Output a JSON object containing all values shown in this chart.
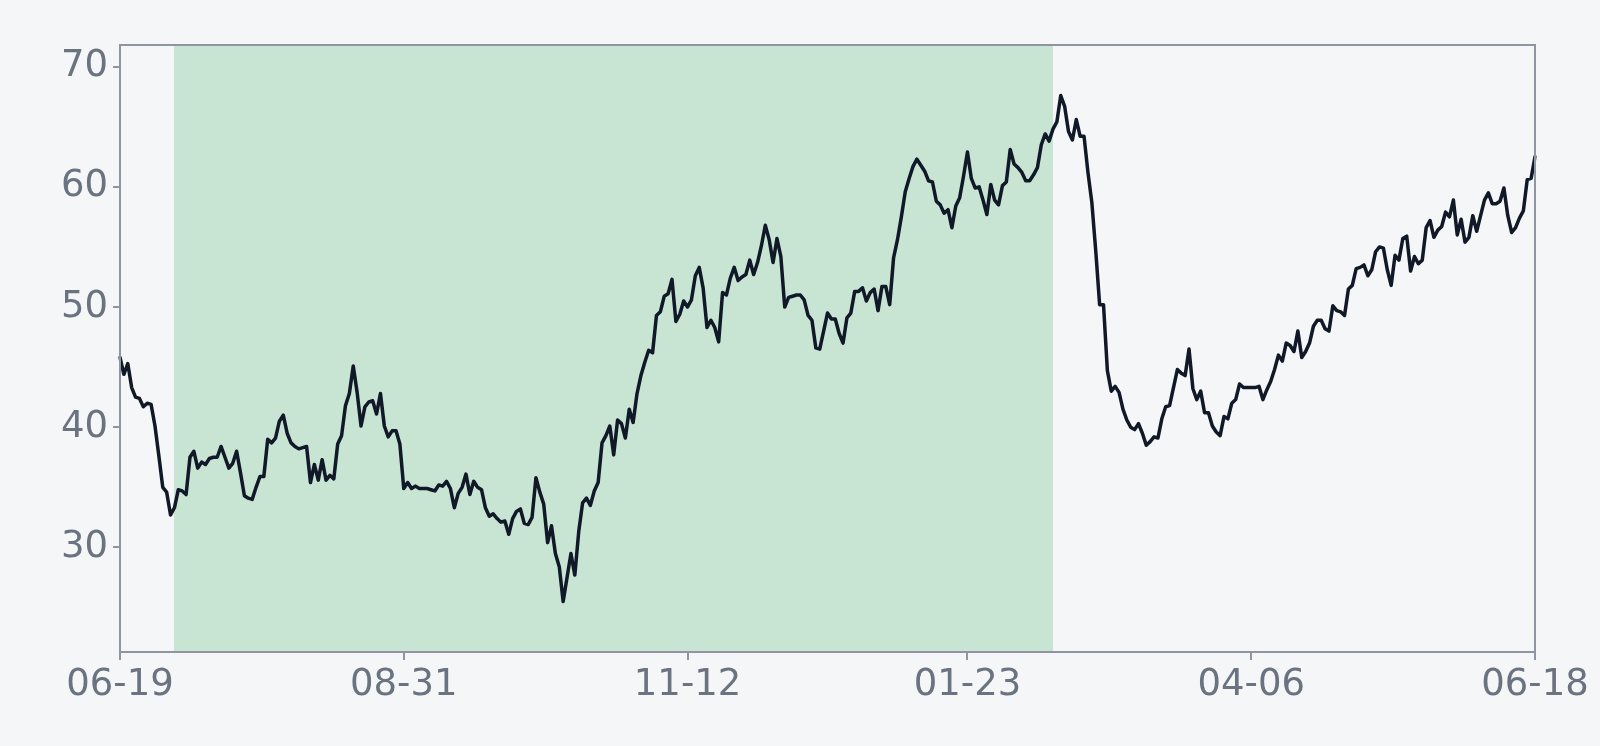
{
  "chart_data": {
    "type": "line",
    "categories": [
      "06-19",
      null,
      null,
      null,
      null,
      null,
      null,
      null,
      null,
      null,
      null,
      null,
      null,
      null,
      null,
      null,
      null,
      null,
      null,
      null,
      null,
      null,
      null,
      null,
      null,
      null,
      null,
      null,
      null,
      null,
      null,
      null,
      null,
      null,
      null,
      null,
      null,
      null,
      null,
      null,
      null,
      null,
      null,
      null,
      null,
      null,
      null,
      null,
      null,
      null,
      null,
      null,
      null,
      null,
      null,
      null,
      null,
      null,
      null,
      null,
      null,
      null,
      null,
      null,
      null,
      null,
      null,
      null,
      null,
      null,
      null,
      null,
      null,
      "08-31",
      null,
      null,
      null,
      null,
      null,
      null,
      null,
      null,
      null,
      null,
      null,
      null,
      null,
      null,
      null,
      null,
      null,
      null,
      null,
      null,
      null,
      null,
      null,
      null,
      null,
      null,
      null,
      null,
      null,
      null,
      null,
      null,
      null,
      null,
      null,
      null,
      null,
      null,
      null,
      null,
      null,
      null,
      null,
      null,
      null,
      null,
      null,
      null,
      null,
      null,
      null,
      null,
      null,
      null,
      null,
      null,
      null,
      null,
      null,
      null,
      null,
      null,
      null,
      null,
      null,
      null,
      null,
      null,
      null,
      null,
      null,
      null,
      "11-12",
      null,
      null,
      null,
      null,
      null,
      null,
      null,
      null,
      null,
      null,
      null,
      null,
      null,
      null,
      null,
      null,
      null,
      null,
      null,
      null,
      null,
      null,
      null,
      null,
      null,
      null,
      null,
      null,
      null,
      null,
      null,
      null,
      null,
      null,
      null,
      null,
      null,
      null,
      null,
      null,
      null,
      null,
      null,
      null,
      null,
      null,
      null,
      null,
      null,
      null,
      null,
      null,
      null,
      null,
      null,
      null,
      null,
      null,
      null,
      null,
      null,
      null,
      null,
      null,
      null,
      null,
      null,
      null,
      null,
      null,
      null,
      "01-23",
      null,
      null,
      null,
      null,
      null,
      null,
      null,
      null,
      null,
      null,
      null,
      null,
      null,
      null,
      null,
      null,
      null,
      null,
      null,
      null,
      null,
      null,
      null,
      null,
      null,
      null,
      null,
      null,
      null,
      null,
      null,
      null,
      null,
      null,
      null,
      null,
      null,
      null,
      null,
      null,
      null,
      null,
      null,
      null,
      null,
      null,
      null,
      null,
      null,
      null,
      null,
      null,
      null,
      null,
      null,
      null,
      null,
      null,
      null,
      null,
      null,
      null,
      null,
      null,
      null,
      null,
      null,
      null,
      null,
      null,
      null,
      null,
      "04-06",
      null,
      null,
      null,
      null,
      null,
      null,
      null,
      null,
      null,
      null,
      null,
      null,
      null,
      null,
      null,
      null,
      null,
      null,
      null,
      null,
      null,
      null,
      null,
      null,
      null,
      null,
      null,
      null,
      null,
      null,
      null,
      null,
      null,
      null,
      null,
      null,
      null,
      null,
      null,
      null,
      null,
      null,
      null,
      null,
      null,
      null,
      null,
      null,
      null,
      null,
      null,
      null,
      null,
      null,
      null,
      null,
      null,
      null,
      null,
      null,
      null,
      null,
      null,
      null,
      null,
      null,
      null,
      null,
      null,
      null,
      null,
      null,
      "06-18"
    ],
    "series": [
      {
        "color": "#111827",
        "values": [
          45.8,
          44.4,
          45.3,
          43.3,
          42.5,
          42.4,
          41.7,
          42.0,
          41.9,
          40.1,
          37.6,
          35.0,
          34.6,
          32.7,
          33.3,
          34.8,
          34.7,
          34.4,
          37.5,
          38.0,
          36.6,
          37.1,
          36.9,
          37.4,
          37.5,
          37.5,
          38.4,
          37.5,
          36.6,
          37.0,
          38.0,
          36.2,
          34.3,
          34.1,
          34.0,
          35.0,
          35.9,
          35.9,
          39.0,
          38.7,
          39.1,
          40.5,
          41.0,
          39.5,
          38.7,
          38.4,
          38.2,
          38.3,
          38.4,
          35.4,
          36.9,
          35.6,
          37.3,
          35.6,
          36.0,
          35.7,
          38.6,
          39.3,
          41.8,
          42.8,
          45.1,
          42.9,
          40.1,
          41.7,
          42.1,
          42.2,
          41.1,
          42.8,
          40.1,
          39.2,
          39.7,
          39.7,
          38.6,
          34.9,
          35.4,
          34.9,
          35.1,
          34.9,
          34.9,
          34.9,
          34.8,
          34.7,
          35.2,
          35.1,
          35.5,
          34.9,
          33.3,
          34.5,
          35.0,
          36.1,
          34.4,
          35.5,
          35.0,
          34.8,
          33.3,
          32.6,
          32.8,
          32.4,
          32.1,
          32.2,
          31.1,
          32.4,
          33.0,
          33.2,
          32.0,
          31.9,
          32.5,
          35.8,
          34.6,
          33.6,
          30.4,
          31.8,
          29.5,
          28.4,
          25.5,
          27.5,
          29.5,
          27.7,
          31.3,
          33.7,
          34.1,
          33.5,
          34.7,
          35.4,
          38.7,
          39.3,
          40.1,
          37.7,
          40.6,
          40.3,
          39.1,
          41.5,
          40.4,
          42.8,
          44.3,
          45.4,
          46.4,
          46.2,
          49.3,
          49.6,
          50.9,
          51.1,
          52.3,
          48.8,
          49.4,
          50.5,
          50.0,
          50.6,
          52.6,
          53.3,
          51.6,
          48.3,
          48.9,
          48.3,
          47.1,
          51.2,
          51.0,
          52.4,
          53.3,
          52.2,
          52.5,
          52.7,
          53.9,
          52.7,
          53.7,
          55.1,
          56.8,
          55.6,
          53.7,
          55.7,
          54.2,
          50.0,
          50.8,
          50.9,
          51.0,
          51.0,
          50.6,
          49.3,
          48.9,
          46.6,
          46.5,
          48.0,
          49.5,
          49.0,
          49.0,
          47.8,
          47.0,
          49.1,
          49.5,
          51.3,
          51.3,
          51.6,
          50.5,
          51.2,
          51.5,
          49.7,
          51.7,
          51.7,
          50.2,
          54.1,
          55.6,
          57.5,
          59.6,
          60.7,
          61.7,
          62.3,
          61.8,
          61.3,
          60.5,
          60.4,
          58.8,
          58.5,
          57.8,
          58.1,
          56.6,
          58.4,
          59.1,
          60.9,
          62.9,
          60.7,
          59.9,
          60.0,
          58.9,
          57.7,
          60.2,
          58.9,
          58.5,
          60.1,
          60.4,
          63.1,
          61.9,
          61.6,
          61.2,
          60.5,
          60.5,
          61.0,
          61.6,
          63.5,
          64.4,
          63.8,
          64.8,
          65.4,
          67.6,
          66.7,
          64.6,
          63.9,
          65.6,
          64.2,
          64.2,
          61.2,
          58.7,
          54.7,
          50.2,
          50.2,
          44.7,
          43.0,
          43.4,
          42.9,
          41.5,
          40.6,
          40.0,
          39.8,
          40.3,
          39.5,
          38.5,
          38.8,
          39.2,
          39.1,
          40.7,
          41.7,
          41.8,
          43.3,
          44.8,
          44.5,
          44.3,
          46.5,
          43.2,
          42.3,
          43.0,
          41.2,
          41.2,
          40.1,
          39.6,
          39.3,
          40.9,
          40.7,
          42.0,
          42.3,
          43.6,
          43.3,
          43.3,
          43.3,
          43.3,
          43.4,
          42.3,
          43.1,
          43.8,
          44.8,
          46.0,
          45.5,
          47.0,
          46.8,
          46.3,
          48.0,
          45.8,
          46.3,
          47.0,
          48.4,
          48.9,
          48.9,
          48.2,
          48.0,
          50.1,
          49.7,
          49.6,
          49.3,
          51.5,
          51.8,
          53.2,
          53.3,
          53.5,
          52.6,
          53.1,
          54.6,
          55.0,
          54.9,
          53.1,
          51.8,
          54.3,
          53.9,
          55.7,
          55.9,
          53.0,
          54.2,
          53.6,
          53.9,
          56.6,
          57.2,
          55.8,
          56.4,
          56.7,
          57.9,
          57.5,
          58.9,
          56.0,
          57.3,
          55.4,
          55.8,
          57.6,
          56.3,
          57.6,
          58.9,
          59.5,
          58.6,
          58.6,
          58.8,
          59.9,
          57.6,
          56.2,
          56.6,
          57.4,
          58.0,
          60.6,
          60.7,
          62.5
        ]
      }
    ],
    "ylim": [
      21.3,
      71.8
    ],
    "yticks": [
      30,
      40,
      50,
      60,
      70
    ]
  }
}
